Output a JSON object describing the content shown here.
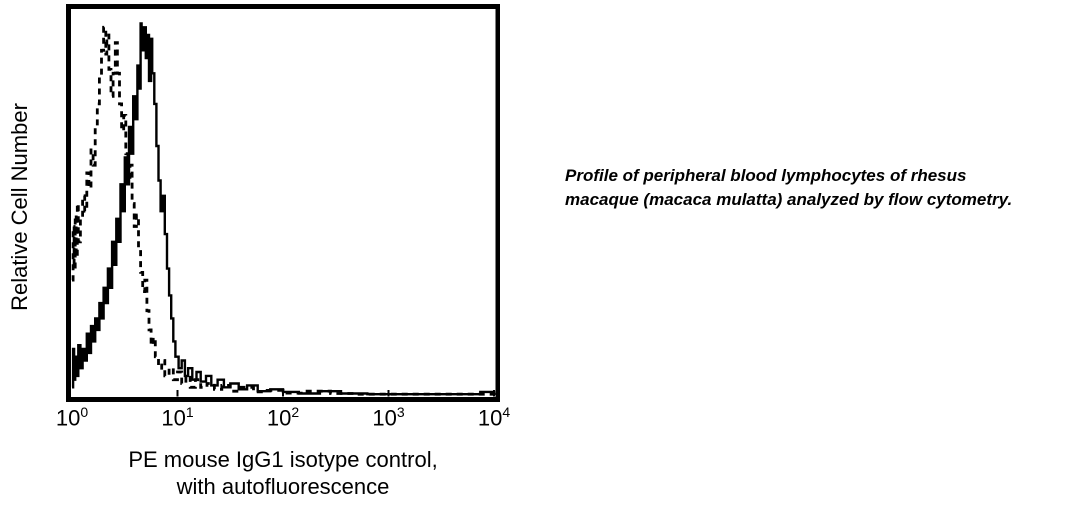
{
  "page": {
    "background_color": "#ffffff",
    "foreground_color": "#000000"
  },
  "chart_data": {
    "type": "line",
    "subtype": "flow-cytometry-histogram-overlay",
    "title": "",
    "ylabel": "Relative Cell Number",
    "xlabel_lines": [
      "PE mouse IgG1 isotype control,",
      "with autofluorescence"
    ],
    "grid": false,
    "legend_position": "none",
    "y_axis": {
      "range_fraction": [
        0,
        1
      ],
      "tick_labels": []
    },
    "x_axis": {
      "scale": "log10",
      "tick_base": "10",
      "tick_exponents": [
        0,
        1,
        2,
        3,
        4
      ],
      "range_log10": [
        0,
        4
      ]
    },
    "series": [
      {
        "name": "solid-histogram",
        "line_style": "solid",
        "color": "#000000",
        "points_log10x_heightfrac": [
          [
            0.0,
            0.02
          ],
          [
            0.01,
            0.12
          ],
          [
            0.02,
            0.04
          ],
          [
            0.03,
            0.1
          ],
          [
            0.04,
            0.05
          ],
          [
            0.06,
            0.13
          ],
          [
            0.08,
            0.07
          ],
          [
            0.1,
            0.12
          ],
          [
            0.12,
            0.09
          ],
          [
            0.14,
            0.16
          ],
          [
            0.16,
            0.11
          ],
          [
            0.18,
            0.18
          ],
          [
            0.2,
            0.14
          ],
          [
            0.22,
            0.2
          ],
          [
            0.24,
            0.17
          ],
          [
            0.26,
            0.24
          ],
          [
            0.28,
            0.2
          ],
          [
            0.3,
            0.28
          ],
          [
            0.32,
            0.24
          ],
          [
            0.34,
            0.33
          ],
          [
            0.36,
            0.28
          ],
          [
            0.38,
            0.4
          ],
          [
            0.4,
            0.34
          ],
          [
            0.42,
            0.46
          ],
          [
            0.44,
            0.4
          ],
          [
            0.46,
            0.55
          ],
          [
            0.48,
            0.48
          ],
          [
            0.5,
            0.62
          ],
          [
            0.52,
            0.55
          ],
          [
            0.54,
            0.7
          ],
          [
            0.56,
            0.63
          ],
          [
            0.58,
            0.78
          ],
          [
            0.6,
            0.72
          ],
          [
            0.62,
            0.86
          ],
          [
            0.63,
            0.8
          ],
          [
            0.65,
            0.97
          ],
          [
            0.66,
            0.9
          ],
          [
            0.68,
            0.96
          ],
          [
            0.7,
            0.88
          ],
          [
            0.71,
            0.94
          ],
          [
            0.73,
            0.82
          ],
          [
            0.75,
            0.93
          ],
          [
            0.76,
            0.84
          ],
          [
            0.78,
            0.76
          ],
          [
            0.8,
            0.65
          ],
          [
            0.82,
            0.56
          ],
          [
            0.84,
            0.48
          ],
          [
            0.86,
            0.52
          ],
          [
            0.88,
            0.42
          ],
          [
            0.9,
            0.33
          ],
          [
            0.92,
            0.26
          ],
          [
            0.94,
            0.2
          ],
          [
            0.96,
            0.14
          ],
          [
            0.98,
            0.1
          ],
          [
            1.01,
            0.07
          ],
          [
            1.04,
            0.09
          ],
          [
            1.07,
            0.05
          ],
          [
            1.1,
            0.07
          ],
          [
            1.14,
            0.04
          ],
          [
            1.18,
            0.06
          ],
          [
            1.22,
            0.035
          ],
          [
            1.27,
            0.05
          ],
          [
            1.32,
            0.025
          ],
          [
            1.38,
            0.04
          ],
          [
            1.44,
            0.02
          ],
          [
            1.5,
            0.03
          ],
          [
            1.58,
            0.015
          ],
          [
            1.66,
            0.025
          ],
          [
            1.76,
            0.01
          ],
          [
            1.88,
            0.015
          ],
          [
            2.0,
            0.008
          ],
          [
            2.15,
            0.004
          ],
          [
            2.35,
            0.01
          ],
          [
            2.55,
            0.004
          ],
          [
            2.8,
            0.002
          ],
          [
            3.1,
            0.002
          ],
          [
            3.45,
            0.002
          ],
          [
            3.87,
            0.008
          ],
          [
            4.0,
            0.0
          ]
        ]
      },
      {
        "name": "dashed-histogram",
        "line_style": "dashed",
        "color": "#000000",
        "points_log10x_heightfrac": [
          [
            0.0,
            0.3
          ],
          [
            0.01,
            0.44
          ],
          [
            0.02,
            0.33
          ],
          [
            0.03,
            0.47
          ],
          [
            0.04,
            0.36
          ],
          [
            0.05,
            0.5
          ],
          [
            0.06,
            0.4
          ],
          [
            0.08,
            0.46
          ],
          [
            0.1,
            0.52
          ],
          [
            0.12,
            0.48
          ],
          [
            0.14,
            0.58
          ],
          [
            0.16,
            0.54
          ],
          [
            0.18,
            0.64
          ],
          [
            0.2,
            0.6
          ],
          [
            0.22,
            0.7
          ],
          [
            0.24,
            0.76
          ],
          [
            0.26,
            0.83
          ],
          [
            0.28,
            0.9
          ],
          [
            0.3,
            0.96
          ],
          [
            0.32,
            0.89
          ],
          [
            0.33,
            0.94
          ],
          [
            0.35,
            0.85
          ],
          [
            0.37,
            0.78
          ],
          [
            0.39,
            0.84
          ],
          [
            0.41,
            0.92
          ],
          [
            0.43,
            0.84
          ],
          [
            0.45,
            0.76
          ],
          [
            0.47,
            0.69
          ],
          [
            0.49,
            0.73
          ],
          [
            0.51,
            0.63
          ],
          [
            0.53,
            0.56
          ],
          [
            0.55,
            0.6
          ],
          [
            0.57,
            0.5
          ],
          [
            0.59,
            0.44
          ],
          [
            0.61,
            0.47
          ],
          [
            0.63,
            0.38
          ],
          [
            0.65,
            0.32
          ],
          [
            0.67,
            0.27
          ],
          [
            0.69,
            0.3
          ],
          [
            0.71,
            0.22
          ],
          [
            0.73,
            0.17
          ],
          [
            0.75,
            0.13
          ],
          [
            0.77,
            0.15
          ],
          [
            0.79,
            0.1
          ],
          [
            0.82,
            0.07
          ],
          [
            0.85,
            0.09
          ],
          [
            0.88,
            0.05
          ],
          [
            0.92,
            0.07
          ],
          [
            0.96,
            0.04
          ],
          [
            1.0,
            0.06
          ],
          [
            1.04,
            0.03
          ],
          [
            1.08,
            0.05
          ],
          [
            1.12,
            0.02
          ],
          [
            1.17,
            0.04
          ],
          [
            1.22,
            0.02
          ],
          [
            1.28,
            0.03
          ],
          [
            1.35,
            0.015
          ],
          [
            1.42,
            0.025
          ],
          [
            1.5,
            0.01
          ],
          [
            1.6,
            0.02
          ],
          [
            1.72,
            0.008
          ],
          [
            1.85,
            0.012
          ],
          [
            2.0,
            0.005
          ],
          [
            2.2,
            0.01
          ],
          [
            2.45,
            0.004
          ],
          [
            2.7,
            0.002
          ],
          [
            3.0,
            0.002
          ],
          [
            4.0,
            0.0
          ]
        ]
      }
    ]
  },
  "caption": {
    "lines": [
      "Profile of peripheral blood lymphocytes of rhesus",
      "macaque (macaca mulatta) analyzed by flow cytometry."
    ]
  }
}
